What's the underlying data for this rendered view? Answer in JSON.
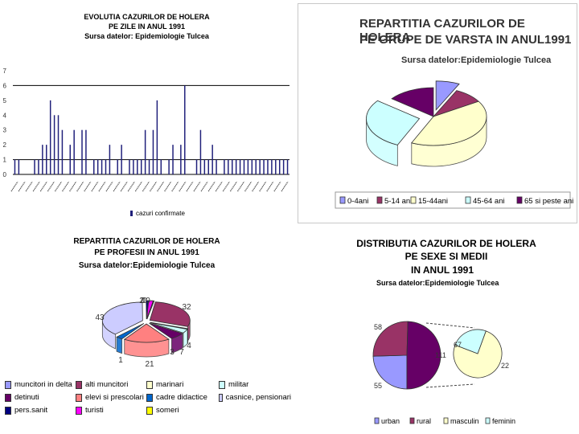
{
  "chart_data": [
    {
      "type": "bar",
      "title": "EVOLUTIA CAZURILOR DE HOLERA",
      "subtitle": "PE ZILE IN ANUL 1991",
      "source": "Sursa datelor: Epidemiologie Tulcea",
      "legend": "cazuri confirmate",
      "yticks": [
        "0",
        "1",
        "2",
        "3",
        "4",
        "5",
        "6",
        "7"
      ],
      "ylim": [
        0,
        7
      ],
      "values": [
        1,
        1,
        0,
        0,
        0,
        1,
        1,
        2,
        2,
        5,
        4,
        4,
        3,
        0,
        2,
        3,
        0,
        3,
        3,
        0,
        1,
        1,
        1,
        1,
        2,
        0,
        1,
        2,
        0,
        1,
        1,
        1,
        1,
        3,
        1,
        3,
        5,
        1,
        0,
        1,
        2,
        0,
        2,
        6,
        0,
        0,
        1,
        3,
        1,
        1,
        2,
        1,
        0,
        1,
        1,
        1,
        1,
        1,
        1,
        1,
        1,
        1,
        1,
        1,
        1,
        1,
        1,
        1,
        1,
        1
      ],
      "series_color": "#1f1f7a"
    },
    {
      "type": "pie",
      "title": "REPARTITIA CAZURILOR DE HOLERA",
      "subtitle": "PE GRUPE DE VARSTA IN ANUL1991",
      "source": "Sursa datelor:Epidemiologie Tulcea",
      "categories": [
        "0-4ani",
        "5-14 ani",
        "15-44ani",
        "45-64 ani",
        "65 si peste ani"
      ],
      "values": [
        8,
        10,
        45,
        32,
        16
      ],
      "colors": [
        "#9999ff",
        "#993366",
        "#ffffcc",
        "#ccffff",
        "#660066"
      ]
    },
    {
      "type": "pie",
      "title": "REPARTITIA CAZURILOR DE HOLERA",
      "subtitle": "PE PROFESII IN ANUL 1991",
      "source": "Sursa datelor:Epidemiologie Tulcea",
      "categories": [
        "muncitori in delta",
        "alti muncitori",
        "marinari",
        "militar",
        "detinuti",
        "elevi si prescolari",
        "cadre didactice",
        "casnice, pensionari",
        "pers.sanit",
        "turisti",
        "someri"
      ],
      "values": [
        0,
        32,
        0,
        4,
        7,
        21,
        3,
        43,
        1,
        2,
        0
      ],
      "labels": [
        "0",
        "32",
        "0",
        "4",
        "7",
        "21",
        "3",
        "43",
        "1",
        "2",
        "0"
      ],
      "colors": [
        "#9999ff",
        "#993366",
        "#ffffcc",
        "#ccffff",
        "#660066",
        "#ff8080",
        "#0066cc",
        "#ccccff",
        "#000080",
        "#ff00ff",
        "#ffff00"
      ]
    },
    {
      "type": "pie",
      "title": "DISTRIBUTIA CAZURILOR DE HOLERA",
      "subtitle": "PE SEXE  SI MEDII",
      "subtitle2": "IN ANUL 1991",
      "source": "Sursa datelor:Epidemiologie Tulcea",
      "categories": [
        "urban",
        "rural",
        "masculin",
        "feminin"
      ],
      "environment_values": [
        55,
        58,
        111
      ],
      "sex_values": [
        67,
        22
      ],
      "colors": [
        "#9999ff",
        "#993366",
        "#ffffcc",
        "#ccffff"
      ]
    }
  ]
}
